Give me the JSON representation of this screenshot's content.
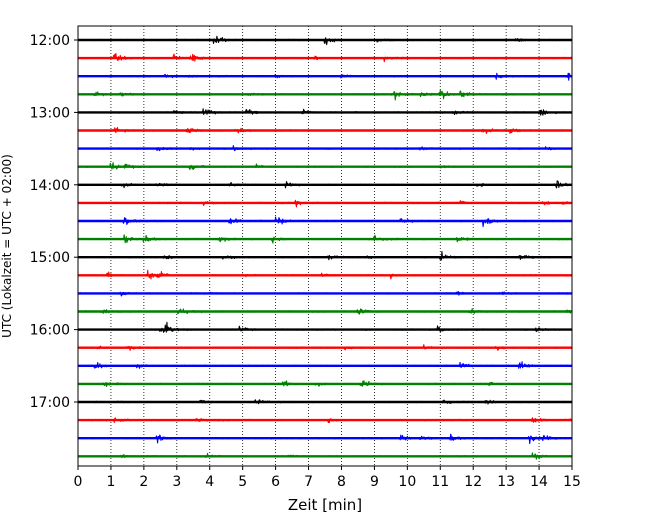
{
  "chart_data": {
    "type": "line",
    "title": "",
    "xlabel": "Zeit  [min]",
    "ylabel": "UTC (Lokalzeit = UTC + 02:00)",
    "xlim": [
      0,
      15
    ],
    "x_ticks": [
      0,
      1,
      2,
      3,
      4,
      5,
      6,
      7,
      8,
      9,
      10,
      11,
      12,
      13,
      14,
      15
    ],
    "x_tick_labels": [
      "0",
      "1",
      "2",
      "3",
      "4",
      "5",
      "6",
      "7",
      "8",
      "9",
      "10",
      "11",
      "12",
      "13",
      "14",
      "15"
    ],
    "y_ticks": [
      {
        "label": "12:00",
        "trace_index": 0
      },
      {
        "label": "13:00",
        "trace_index": 4
      },
      {
        "label": "14:00",
        "trace_index": 8
      },
      {
        "label": "15:00",
        "trace_index": 12
      },
      {
        "label": "16:00",
        "trace_index": 16
      },
      {
        "label": "17:00",
        "trace_index": 20
      }
    ],
    "grid": "x-dotted",
    "trace_minutes": 15,
    "color_cycle": [
      "#000000",
      "#ff0000",
      "#0000ff",
      "#008000"
    ],
    "traces": [
      {
        "start": "12:00",
        "color": "#000000",
        "events": [
          [
            4.1,
            1.2
          ],
          [
            7.5,
            0.8
          ],
          [
            9.1,
            0.35
          ],
          [
            13.3,
            0.35
          ]
        ]
      },
      {
        "start": "12:15",
        "color": "#ff0000",
        "events": [
          [
            1.1,
            0.7
          ],
          [
            2.9,
            0.6
          ],
          [
            3.4,
            0.5
          ],
          [
            3.5,
            0.5
          ],
          [
            7.2,
            0.3
          ],
          [
            9.3,
            0.3
          ]
        ]
      },
      {
        "start": "12:30",
        "color": "#0000ff",
        "events": [
          [
            2.6,
            0.3
          ],
          [
            3.4,
            0.35
          ],
          [
            6.0,
            0.3
          ],
          [
            8.0,
            0.3
          ],
          [
            12.7,
            0.5
          ],
          [
            14.9,
            1.0
          ]
        ]
      },
      {
        "start": "12:45",
        "color": "#008000",
        "events": [
          [
            0.5,
            0.6
          ],
          [
            1.3,
            0.4
          ],
          [
            5.0,
            0.5
          ],
          [
            9.6,
            0.9
          ],
          [
            10.4,
            0.4
          ],
          [
            11.0,
            1.0
          ],
          [
            11.6,
            0.6
          ]
        ]
      },
      {
        "start": "13:00",
        "color": "#000000",
        "events": [
          [
            2.9,
            0.4
          ],
          [
            3.8,
            0.8
          ],
          [
            5.1,
            0.5
          ],
          [
            6.8,
            0.6
          ],
          [
            11.4,
            0.4
          ],
          [
            14.0,
            0.9
          ]
        ]
      },
      {
        "start": "13:15",
        "color": "#ff0000",
        "events": [
          [
            1.1,
            0.6
          ],
          [
            3.3,
            0.6
          ],
          [
            4.8,
            0.6
          ],
          [
            12.3,
            0.5
          ],
          [
            13.1,
            0.5
          ]
        ]
      },
      {
        "start": "13:30",
        "color": "#0000ff",
        "events": [
          [
            2.4,
            0.3
          ],
          [
            3.4,
            0.3
          ],
          [
            4.7,
            0.3
          ],
          [
            10.4,
            0.3
          ],
          [
            14.2,
            0.3
          ]
        ]
      },
      {
        "start": "13:45",
        "color": "#008000",
        "events": [
          [
            1.0,
            0.9
          ],
          [
            1.4,
            0.5
          ],
          [
            3.4,
            0.6
          ],
          [
            5.4,
            0.3
          ],
          [
            11.0,
            0.3
          ]
        ]
      },
      {
        "start": "14:00",
        "color": "#000000",
        "events": [
          [
            1.3,
            0.4
          ],
          [
            2.4,
            0.4
          ],
          [
            4.6,
            0.5
          ],
          [
            6.3,
            0.4
          ],
          [
            12.1,
            0.4
          ],
          [
            14.5,
            1.0
          ]
        ]
      },
      {
        "start": "14:15",
        "color": "#ff0000",
        "events": [
          [
            3.8,
            0.4
          ],
          [
            6.6,
            0.4
          ],
          [
            11.6,
            0.3
          ],
          [
            14.1,
            0.5
          ],
          [
            14.7,
            0.3
          ]
        ]
      },
      {
        "start": "14:30",
        "color": "#0000ff",
        "events": [
          [
            1.4,
            0.8
          ],
          [
            4.6,
            0.7
          ],
          [
            6.0,
            1.0
          ],
          [
            9.8,
            0.6
          ],
          [
            12.3,
            1.0
          ]
        ]
      },
      {
        "start": "14:45",
        "color": "#008000",
        "events": [
          [
            1.4,
            0.6
          ],
          [
            2.0,
            0.7
          ],
          [
            4.3,
            0.6
          ],
          [
            5.9,
            0.6
          ],
          [
            9.0,
            0.5
          ],
          [
            11.5,
            0.6
          ]
        ]
      },
      {
        "start": "15:00",
        "color": "#000000",
        "events": [
          [
            2.6,
            0.4
          ],
          [
            4.4,
            0.4
          ],
          [
            7.6,
            0.5
          ],
          [
            8.8,
            0.3
          ],
          [
            11.0,
            1.0
          ],
          [
            13.4,
            0.7
          ]
        ]
      },
      {
        "start": "15:15",
        "color": "#ff0000",
        "events": [
          [
            0.9,
            0.4
          ],
          [
            2.1,
            0.9
          ],
          [
            2.4,
            0.7
          ],
          [
            5.0,
            0.3
          ],
          [
            7.4,
            0.3
          ],
          [
            9.5,
            0.5
          ]
        ]
      },
      {
        "start": "15:30",
        "color": "#0000ff",
        "events": [
          [
            1.3,
            0.5
          ],
          [
            4.0,
            0.3
          ],
          [
            11.5,
            0.3
          ],
          [
            12.8,
            0.3
          ]
        ]
      },
      {
        "start": "15:45",
        "color": "#008000",
        "events": [
          [
            0.7,
            0.5
          ],
          [
            3.0,
            0.8
          ],
          [
            8.5,
            0.6
          ],
          [
            11.9,
            0.6
          ],
          [
            14.8,
            0.5
          ]
        ]
      },
      {
        "start": "16:00",
        "color": "#000000",
        "events": [
          [
            2.5,
            1.0
          ],
          [
            2.7,
            0.6
          ],
          [
            4.9,
            0.4
          ],
          [
            10.9,
            0.5
          ],
          [
            13.9,
            0.4
          ]
        ]
      },
      {
        "start": "16:15",
        "color": "#ff0000",
        "events": [
          [
            0.5,
            0.3
          ],
          [
            1.5,
            0.5
          ],
          [
            8.1,
            0.4
          ],
          [
            10.5,
            0.3
          ],
          [
            12.7,
            0.5
          ]
        ]
      },
      {
        "start": "16:30",
        "color": "#0000ff",
        "events": [
          [
            0.5,
            0.9
          ],
          [
            1.8,
            0.3
          ],
          [
            11.6,
            0.6
          ],
          [
            13.4,
            0.9
          ]
        ]
      },
      {
        "start": "16:45",
        "color": "#008000",
        "events": [
          [
            0.8,
            0.5
          ],
          [
            6.2,
            0.6
          ],
          [
            7.2,
            0.4
          ],
          [
            8.6,
            0.8
          ],
          [
            12.5,
            0.4
          ]
        ]
      },
      {
        "start": "17:00",
        "color": "#000000",
        "events": [
          [
            1.2,
            0.3
          ],
          [
            3.7,
            0.3
          ],
          [
            5.4,
            0.6
          ],
          [
            11.1,
            0.7
          ],
          [
            12.4,
            0.3
          ]
        ]
      },
      {
        "start": "17:15",
        "color": "#ff0000",
        "events": [
          [
            1.1,
            0.5
          ],
          [
            3.6,
            0.3
          ],
          [
            7.6,
            0.3
          ],
          [
            13.8,
            0.6
          ],
          [
            14.9,
            0.3
          ]
        ]
      },
      {
        "start": "17:30",
        "color": "#0000ff",
        "events": [
          [
            2.4,
            0.6
          ],
          [
            9.8,
            0.5
          ],
          [
            10.4,
            0.3
          ],
          [
            11.3,
            0.6
          ],
          [
            13.7,
            0.8
          ],
          [
            14.1,
            0.5
          ]
        ]
      },
      {
        "start": "17:45",
        "color": "#008000",
        "events": [
          [
            1.3,
            0.3
          ],
          [
            3.9,
            0.3
          ],
          [
            6.4,
            0.3
          ],
          [
            13.8,
            0.6
          ]
        ]
      }
    ]
  }
}
